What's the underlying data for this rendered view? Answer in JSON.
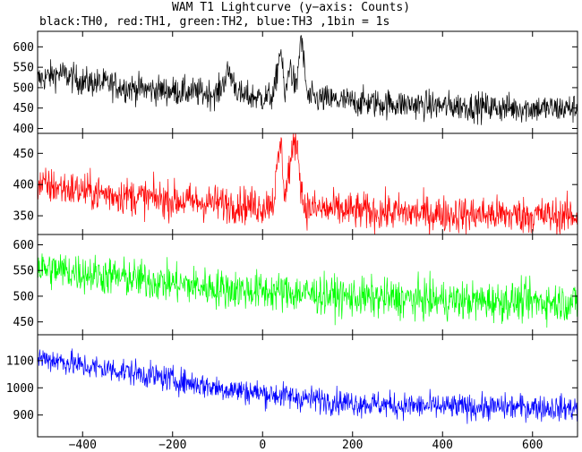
{
  "title": "WAM T1 Lightcurve (y−axis: Counts)",
  "subtitle": "black:TH0, red:TH1, green:TH2, blue:TH3 ,1bin = 1s",
  "chart_data": {
    "type": "line",
    "x_range": [
      -500,
      700
    ],
    "x_ticks": [
      -400,
      -200,
      0,
      200,
      400,
      600
    ],
    "x_tick_labels": [
      "−400",
      "−200",
      "0",
      "200",
      "400",
      "600"
    ],
    "panels": [
      {
        "series": "TH0",
        "color": "#000000",
        "ylim": [
          388,
          638
        ],
        "y_ticks": [
          400,
          450,
          500,
          550,
          600
        ],
        "x": [
          -500,
          -450,
          -400,
          -350,
          -300,
          -250,
          -200,
          -150,
          -100,
          -75,
          -50,
          -25,
          0,
          25,
          40,
          50,
          60,
          75,
          85,
          100,
          150,
          200,
          250,
          300,
          350,
          400,
          450,
          500,
          550,
          600,
          650,
          700
        ],
        "y": [
          520,
          535,
          515,
          510,
          500,
          495,
          492,
          488,
          485,
          540,
          480,
          478,
          475,
          480,
          600,
          470,
          560,
          490,
          630,
          475,
          470,
          465,
          462,
          460,
          458,
          455,
          455,
          452,
          450,
          450,
          448,
          450
        ],
        "noise": 30
      },
      {
        "series": "TH1",
        "color": "#ff0000",
        "ylim": [
          320,
          482
        ],
        "y_ticks": [
          350,
          400,
          450
        ],
        "x": [
          -500,
          -450,
          -400,
          -350,
          -300,
          -250,
          -200,
          -150,
          -100,
          -50,
          0,
          25,
          40,
          50,
          60,
          75,
          90,
          100,
          150,
          200,
          250,
          300,
          350,
          400,
          450,
          500,
          550,
          600,
          650,
          700
        ],
        "y": [
          400,
          395,
          390,
          385,
          382,
          378,
          375,
          372,
          370,
          368,
          365,
          375,
          470,
          380,
          430,
          475,
          370,
          362,
          360,
          358,
          356,
          355,
          354,
          353,
          352,
          352,
          351,
          351,
          350,
          350
        ],
        "noise": 25
      },
      {
        "series": "TH2",
        "color": "#00ff00",
        "ylim": [
          425,
          620
        ],
        "y_ticks": [
          450,
          500,
          550,
          600
        ],
        "x": [
          -500,
          -400,
          -300,
          -200,
          -100,
          0,
          100,
          200,
          300,
          400,
          500,
          600,
          700
        ],
        "y": [
          555,
          545,
          535,
          525,
          515,
          510,
          505,
          498,
          495,
          492,
          490,
          490,
          488
        ],
        "noise": 32
      },
      {
        "series": "TH3",
        "color": "#0000ff",
        "ylim": [
          820,
          1195
        ],
        "y_ticks": [
          900,
          1000,
          1100
        ],
        "x": [
          -500,
          -450,
          -400,
          -300,
          -200,
          -100,
          0,
          100,
          200,
          300,
          400,
          500,
          600,
          650,
          700
        ],
        "y": [
          1110,
          1100,
          1080,
          1060,
          1030,
          1000,
          980,
          960,
          945,
          935,
          930,
          928,
          930,
          925,
          925
        ],
        "noise": 40
      }
    ]
  }
}
